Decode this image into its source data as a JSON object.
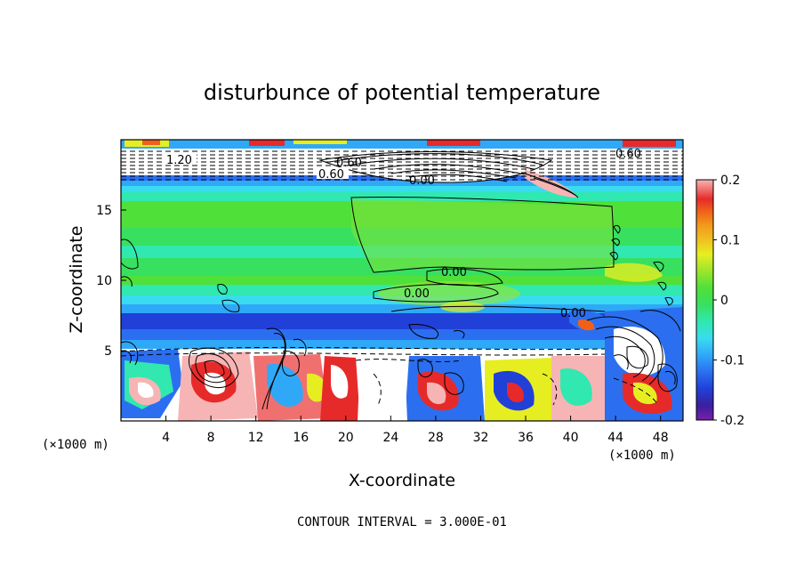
{
  "chart_data": {
    "type": "heatmap",
    "title": "disturbunce of potential temperature",
    "xlabel": "X-coordinate",
    "ylabel": "Z-coordinate",
    "x_unit": "(×1000 m)",
    "z_unit": "(×1000 m)",
    "xlim": [
      0,
      50
    ],
    "ylim": [
      0,
      20
    ],
    "x_ticks": [
      "4",
      "8",
      "12",
      "16",
      "20",
      "24",
      "28",
      "32",
      "36",
      "40",
      "44",
      "48"
    ],
    "y_ticks": [
      "5",
      "10",
      "15"
    ],
    "colorbar": {
      "range": [
        -0.2,
        0.2
      ],
      "tick_labels": [
        "0.2",
        "0.1",
        "0",
        "-0.1",
        "-0.2"
      ]
    },
    "contour_labels": [
      "1.20",
      "0.60",
      "0.60",
      "0.00",
      "0.00",
      "0.00",
      "0.00",
      "0.60"
    ],
    "footer": "CONTOUR INTERVAL = 3.000E-01",
    "grid": false
  },
  "colors": {
    "scale": [
      "#7a1fa8",
      "#3a1f9e",
      "#2040d8",
      "#2b6ff0",
      "#30a8f8",
      "#39dcef",
      "#30e8b0",
      "#38e060",
      "#50e03a",
      "#9be62a",
      "#e6ee22",
      "#f0c020",
      "#f29a1c",
      "#f0601a",
      "#e62a2a",
      "#f07070",
      "#f7b4b4"
    ]
  }
}
